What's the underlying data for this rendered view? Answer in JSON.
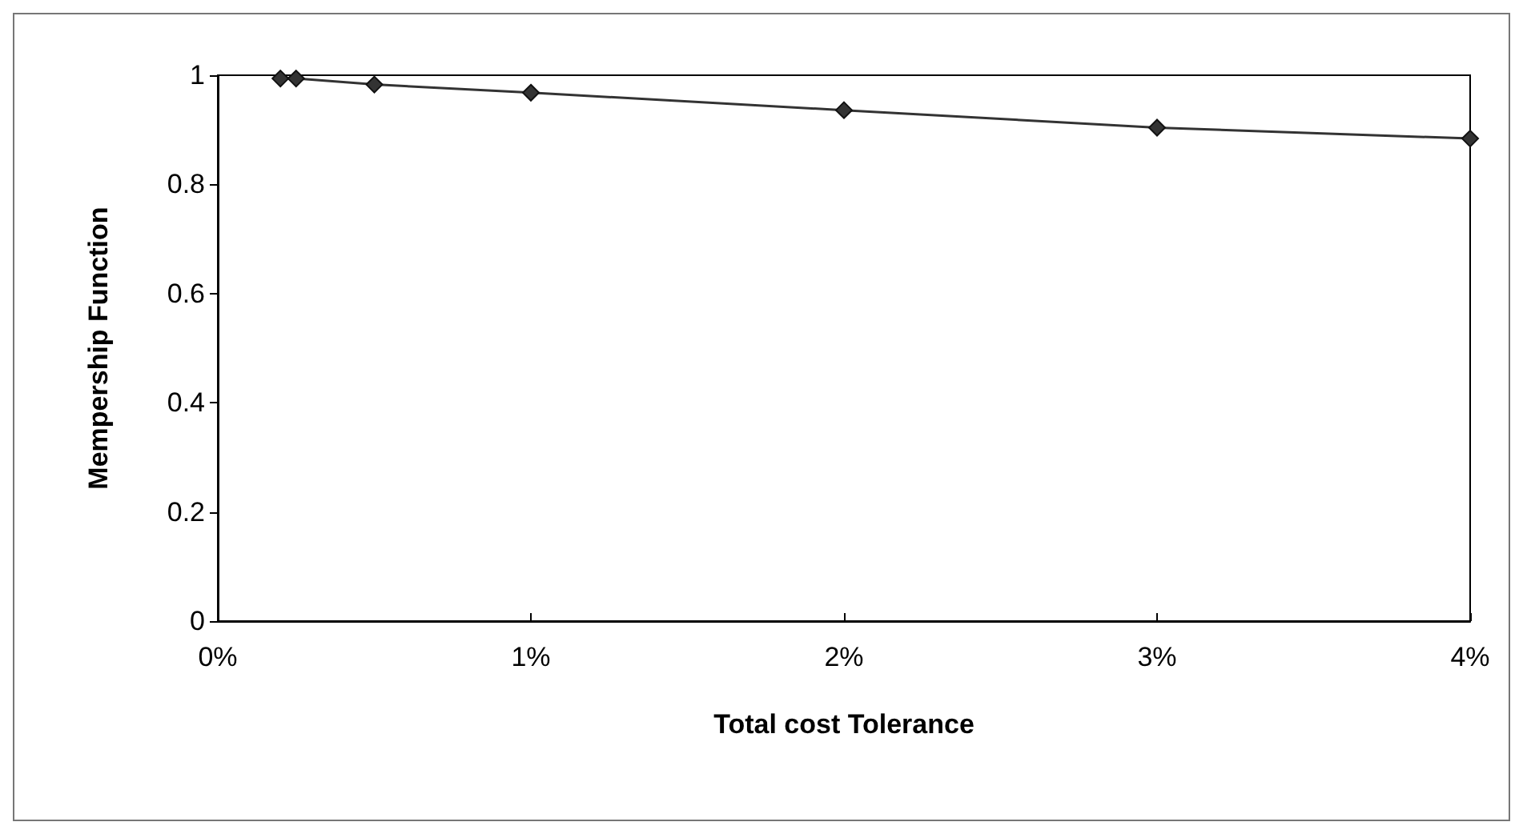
{
  "chart_data": {
    "type": "line",
    "xlabel": "Total cost Tolerance",
    "ylabel": "Mempership Function",
    "x": [
      0.2,
      0.25,
      0.5,
      1,
      2,
      3,
      4
    ],
    "series": [
      {
        "color": "#333333",
        "values": [
          0.994,
          0.994,
          0.983,
          0.968,
          0.936,
          0.904,
          0.884
        ]
      }
    ],
    "xlim": [
      0,
      4
    ],
    "xticks": [
      {
        "value": 0,
        "label": "0%"
      },
      {
        "value": 1,
        "label": "1%"
      },
      {
        "value": 2,
        "label": "2%"
      },
      {
        "value": 3,
        "label": "3%"
      },
      {
        "value": 4,
        "label": "4%"
      }
    ],
    "ylim": [
      0,
      1
    ],
    "yticks": [
      0,
      0.2,
      0.4,
      0.6,
      0.8,
      1
    ],
    "grid": false,
    "marker": "diamond",
    "line_style": "solid"
  }
}
